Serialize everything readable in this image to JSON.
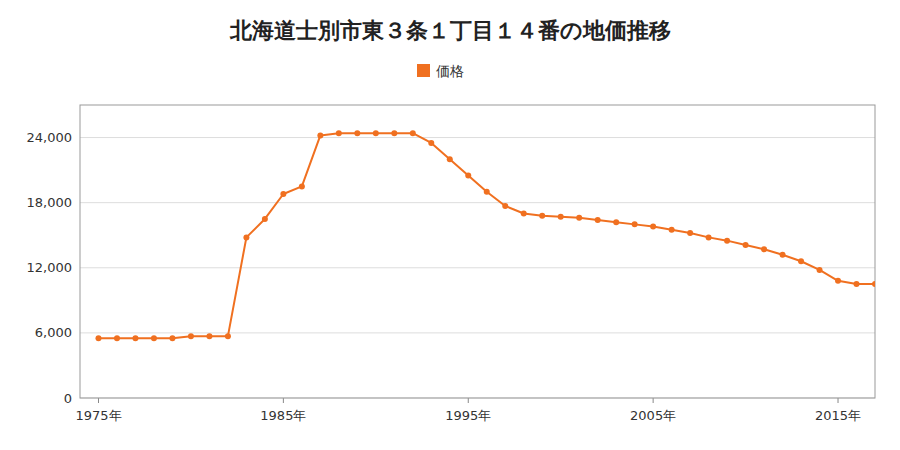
{
  "chart_data": {
    "type": "line",
    "title": "北海道士別市東３条１丁目１４番の地価推移",
    "x": [
      1975,
      1976,
      1977,
      1978,
      1979,
      1980,
      1981,
      1982,
      1983,
      1984,
      1985,
      1986,
      1987,
      1988,
      1989,
      1990,
      1991,
      1992,
      1993,
      1994,
      1995,
      1996,
      1997,
      1998,
      1999,
      2000,
      2001,
      2002,
      2003,
      2004,
      2005,
      2006,
      2007,
      2008,
      2009,
      2010,
      2011,
      2012,
      2013,
      2014,
      2015,
      2016,
      2017
    ],
    "series": [
      {
        "name": "価格",
        "color": "#f07020",
        "marker": "circle",
        "line_style": "solid",
        "values": [
          5500,
          5500,
          5500,
          5500,
          5500,
          5700,
          5700,
          5700,
          14800,
          16500,
          18800,
          19500,
          24200,
          24400,
          24400,
          24400,
          24400,
          24400,
          23500,
          22000,
          20500,
          19000,
          17700,
          17000,
          16800,
          16700,
          16600,
          16400,
          16200,
          16000,
          15800,
          15500,
          15200,
          14800,
          14500,
          14100,
          13700,
          13200,
          12600,
          11800,
          10800,
          10500,
          10500
        ]
      }
    ],
    "xlim": [
      1974,
      2017
    ],
    "ylim": [
      0,
      27000
    ],
    "xticks": [
      {
        "value": 1975,
        "label": "1975年"
      },
      {
        "value": 1985,
        "label": "1985年"
      },
      {
        "value": 1995,
        "label": "1995年"
      },
      {
        "value": 2005,
        "label": "2005年"
      },
      {
        "value": 2015,
        "label": "2015年"
      }
    ],
    "yticks": [
      0,
      {
        "value": 6000,
        "label": "6,000"
      },
      {
        "value": 12000,
        "label": "12,000"
      },
      {
        "value": 18000,
        "label": "18,000"
      },
      {
        "value": 24000,
        "label": "24,000"
      }
    ],
    "grid": true,
    "legend": "top"
  }
}
